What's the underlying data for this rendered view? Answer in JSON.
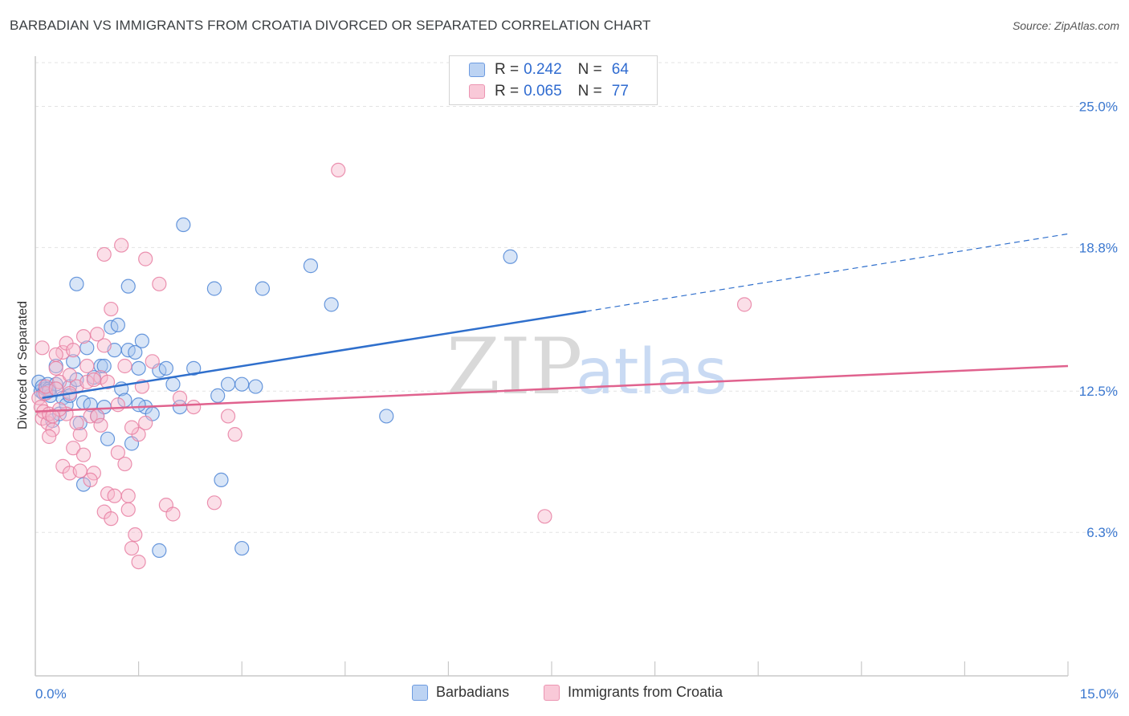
{
  "title": "BARBADIAN VS IMMIGRANTS FROM CROATIA DIVORCED OR SEPARATED CORRELATION CHART",
  "source": "Source: ZipAtlas.com",
  "colors": {
    "blue_fill": "#a9c6ee",
    "blue_stroke": "#4f86d6",
    "blue_line": "#2f6fcc",
    "pink_fill": "#f6b9cd",
    "pink_stroke": "#e77fa2",
    "pink_line": "#e0628e",
    "axis_text": "#3b78d0",
    "grid": "#e3e3e3"
  },
  "legend": {
    "series1": {
      "r_label": "R =",
      "r_value": "0.242",
      "n_label": "N =",
      "n_value": "64"
    },
    "series2": {
      "r_label": "R =",
      "r_value": "0.065",
      "n_label": "N =",
      "n_value": "77"
    }
  },
  "watermark": {
    "zip": "ZIP",
    "atlas": "atlas"
  },
  "chart_data": {
    "type": "scatter",
    "title": "BARBADIAN VS IMMIGRANTS FROM CROATIA DIVORCED OR SEPARATED CORRELATION CHART",
    "xlabel": "",
    "ylabel": "Divorced or Separated",
    "xlim": [
      0,
      15
    ],
    "ylim": [
      0,
      27.2
    ],
    "x_tick_labels": [
      "0.0%",
      "15.0%"
    ],
    "y_ticks": [
      6.3,
      12.5,
      18.8,
      25.0
    ],
    "y_tick_labels": [
      "6.3%",
      "12.5%",
      "18.8%",
      "25.0%"
    ],
    "grid": true,
    "series": [
      {
        "name": "Barbadians",
        "trend": {
          "x0": 0.1,
          "y0": 12.2,
          "x1": 8.0,
          "y1": 16.0,
          "dashed_to_x": 15.0,
          "dashed_to_y": 19.4
        },
        "points": [
          [
            0.05,
            12.9
          ],
          [
            0.08,
            12.5
          ],
          [
            0.1,
            12.7
          ],
          [
            0.12,
            12.4
          ],
          [
            0.15,
            12.6
          ],
          [
            0.18,
            12.8
          ],
          [
            0.2,
            12.6
          ],
          [
            0.22,
            12.3
          ],
          [
            0.25,
            11.2
          ],
          [
            0.3,
            13.6
          ],
          [
            0.35,
            11.5
          ],
          [
            0.4,
            12.2
          ],
          [
            0.45,
            11.9
          ],
          [
            0.5,
            12.7
          ],
          [
            0.55,
            13.8
          ],
          [
            0.6,
            13.0
          ],
          [
            0.65,
            11.1
          ],
          [
            0.7,
            12.0
          ],
          [
            0.75,
            14.4
          ],
          [
            0.8,
            11.9
          ],
          [
            0.85,
            13.1
          ],
          [
            0.9,
            11.4
          ],
          [
            0.95,
            13.6
          ],
          [
            1.0,
            13.6
          ],
          [
            1.05,
            10.4
          ],
          [
            1.1,
            15.3
          ],
          [
            1.15,
            14.3
          ],
          [
            1.2,
            15.4
          ],
          [
            1.25,
            12.6
          ],
          [
            1.3,
            12.1
          ],
          [
            1.35,
            14.3
          ],
          [
            1.4,
            10.2
          ],
          [
            1.45,
            14.2
          ],
          [
            1.5,
            13.5
          ],
          [
            1.55,
            14.7
          ],
          [
            1.6,
            11.8
          ],
          [
            1.7,
            11.5
          ],
          [
            1.8,
            13.4
          ],
          [
            1.9,
            13.5
          ],
          [
            2.0,
            12.8
          ],
          [
            2.1,
            11.8
          ],
          [
            2.15,
            19.8
          ],
          [
            2.6,
            17.0
          ],
          [
            2.7,
            8.6
          ],
          [
            2.65,
            12.3
          ],
          [
            2.8,
            12.8
          ],
          [
            3.0,
            12.8
          ],
          [
            3.2,
            12.7
          ],
          [
            3.3,
            17.0
          ],
          [
            4.0,
            18.0
          ],
          [
            4.3,
            16.3
          ],
          [
            5.1,
            11.4
          ],
          [
            6.9,
            18.4
          ],
          [
            0.7,
            8.4
          ],
          [
            1.8,
            5.5
          ],
          [
            3.0,
            5.6
          ],
          [
            1.5,
            11.9
          ],
          [
            0.6,
            17.2
          ],
          [
            1.35,
            17.1
          ],
          [
            0.5,
            12.3
          ],
          [
            0.3,
            12.8
          ],
          [
            2.3,
            13.5
          ],
          [
            1.0,
            11.8
          ],
          [
            0.2,
            12.5
          ]
        ]
      },
      {
        "name": "Immigrants from Croatia",
        "trend": {
          "x0": 0.0,
          "y0": 11.6,
          "x1": 15.0,
          "y1": 13.6
        },
        "points": [
          [
            0.05,
            12.2
          ],
          [
            0.08,
            11.8
          ],
          [
            0.1,
            11.3
          ],
          [
            0.12,
            11.6
          ],
          [
            0.15,
            12.4
          ],
          [
            0.18,
            11.1
          ],
          [
            0.2,
            11.5
          ],
          [
            0.25,
            10.8
          ],
          [
            0.3,
            13.5
          ],
          [
            0.35,
            12.9
          ],
          [
            0.4,
            14.2
          ],
          [
            0.45,
            11.5
          ],
          [
            0.5,
            13.2
          ],
          [
            0.55,
            10.0
          ],
          [
            0.6,
            12.7
          ],
          [
            0.65,
            10.6
          ],
          [
            0.7,
            9.7
          ],
          [
            0.75,
            13.6
          ],
          [
            0.8,
            11.4
          ],
          [
            0.85,
            8.9
          ],
          [
            0.9,
            15.0
          ],
          [
            0.95,
            13.1
          ],
          [
            1.0,
            7.2
          ],
          [
            1.05,
            8.0
          ],
          [
            1.1,
            16.1
          ],
          [
            1.15,
            7.9
          ],
          [
            1.2,
            11.9
          ],
          [
            1.25,
            18.9
          ],
          [
            1.3,
            13.6
          ],
          [
            1.35,
            7.3
          ],
          [
            1.4,
            5.6
          ],
          [
            1.45,
            6.2
          ],
          [
            1.5,
            10.6
          ],
          [
            1.55,
            12.7
          ],
          [
            1.6,
            18.3
          ],
          [
            1.7,
            13.8
          ],
          [
            1.8,
            17.2
          ],
          [
            1.9,
            7.5
          ],
          [
            2.0,
            7.1
          ],
          [
            2.1,
            12.2
          ],
          [
            0.4,
            9.2
          ],
          [
            0.5,
            8.9
          ],
          [
            0.6,
            11.1
          ],
          [
            0.7,
            14.9
          ],
          [
            0.8,
            8.6
          ],
          [
            0.9,
            11.4
          ],
          [
            1.0,
            14.5
          ],
          [
            1.05,
            12.9
          ],
          [
            1.1,
            6.9
          ],
          [
            1.2,
            9.8
          ],
          [
            1.3,
            9.3
          ],
          [
            1.35,
            7.9
          ],
          [
            1.4,
            10.9
          ],
          [
            1.5,
            5.0
          ],
          [
            2.3,
            11.8
          ],
          [
            2.6,
            7.6
          ],
          [
            2.8,
            11.4
          ],
          [
            2.9,
            10.6
          ],
          [
            4.4,
            22.2
          ],
          [
            7.4,
            7.0
          ],
          [
            10.3,
            16.3
          ],
          [
            1.0,
            18.5
          ],
          [
            0.3,
            14.1
          ],
          [
            0.45,
            14.6
          ],
          [
            0.55,
            14.3
          ],
          [
            0.65,
            9.0
          ],
          [
            0.75,
            12.9
          ],
          [
            0.85,
            13.0
          ],
          [
            0.95,
            11.0
          ],
          [
            0.2,
            10.5
          ],
          [
            0.15,
            12.7
          ],
          [
            0.1,
            14.4
          ],
          [
            0.3,
            12.6
          ],
          [
            0.5,
            12.4
          ],
          [
            0.35,
            11.7
          ],
          [
            0.25,
            11.4
          ],
          [
            1.6,
            11.1
          ]
        ]
      }
    ]
  },
  "bottom_legend": {
    "items": [
      "Barbadians",
      "Immigrants from Croatia"
    ]
  }
}
